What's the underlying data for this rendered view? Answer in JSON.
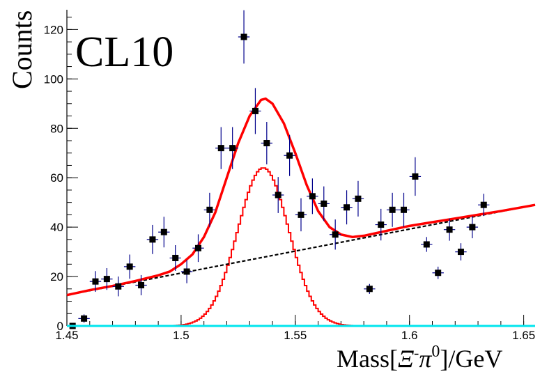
{
  "chart_data": {
    "type": "scatter",
    "title": "CL10",
    "xlabel": "Mass[Ξ-π0]/GeV",
    "xlabel_parts": {
      "prefix": "Mass[",
      "xi": "Ξ",
      "minus": "-",
      "pi": "π",
      "zero": "0",
      "suffix": "]/GeV"
    },
    "ylabel": "Counts",
    "xlim": [
      1.45,
      1.655
    ],
    "ylim": [
      0,
      128
    ],
    "x_ticks": [
      {
        "value": 1.45,
        "label": "1.45"
      },
      {
        "value": 1.5,
        "label": "1.5"
      },
      {
        "value": 1.55,
        "label": "1.55"
      },
      {
        "value": 1.6,
        "label": "1.6"
      },
      {
        "value": 1.65,
        "label": "1.65"
      }
    ],
    "y_ticks": [
      {
        "value": 0,
        "label": "0"
      },
      {
        "value": 20,
        "label": "20"
      },
      {
        "value": 40,
        "label": "40"
      },
      {
        "value": 60,
        "label": "60"
      },
      {
        "value": 80,
        "label": "80"
      },
      {
        "value": 100,
        "label": "100"
      },
      {
        "value": 120,
        "label": "120"
      }
    ],
    "x_minor_step": 0.01,
    "y_minor_step": 5,
    "bin_halfwidth": 0.0025,
    "data_points": [
      {
        "x": 1.4525,
        "y": 0,
        "err": 1
      },
      {
        "x": 1.4575,
        "y": 3,
        "err": 1.7
      },
      {
        "x": 1.4625,
        "y": 18,
        "err": 4.2
      },
      {
        "x": 1.4675,
        "y": 19,
        "err": 4.4
      },
      {
        "x": 1.4725,
        "y": 16,
        "err": 4
      },
      {
        "x": 1.4775,
        "y": 24,
        "err": 4.9
      },
      {
        "x": 1.4825,
        "y": 16.5,
        "err": 4.1
      },
      {
        "x": 1.4875,
        "y": 35,
        "err": 5.9
      },
      {
        "x": 1.4925,
        "y": 38,
        "err": 6.2
      },
      {
        "x": 1.4975,
        "y": 27.5,
        "err": 5.2
      },
      {
        "x": 1.5025,
        "y": 22,
        "err": 4.7
      },
      {
        "x": 1.5075,
        "y": 31.5,
        "err": 5.6
      },
      {
        "x": 1.5125,
        "y": 47,
        "err": 6.9
      },
      {
        "x": 1.5175,
        "y": 72,
        "err": 8.5
      },
      {
        "x": 1.5225,
        "y": 72,
        "err": 8.5
      },
      {
        "x": 1.5275,
        "y": 117,
        "err": 10.8
      },
      {
        "x": 1.5325,
        "y": 87,
        "err": 9.3
      },
      {
        "x": 1.5375,
        "y": 74,
        "err": 8.6
      },
      {
        "x": 1.5425,
        "y": 53,
        "err": 7.3
      },
      {
        "x": 1.5475,
        "y": 69,
        "err": 8.3
      },
      {
        "x": 1.5525,
        "y": 45,
        "err": 6.7
      },
      {
        "x": 1.5575,
        "y": 52.5,
        "err": 7.2
      },
      {
        "x": 1.5625,
        "y": 49.5,
        "err": 7
      },
      {
        "x": 1.5675,
        "y": 37,
        "err": 6.1
      },
      {
        "x": 1.5725,
        "y": 48,
        "err": 6.9
      },
      {
        "x": 1.5775,
        "y": 51.5,
        "err": 7.2
      },
      {
        "x": 1.5825,
        "y": 15,
        "err": 2
      },
      {
        "x": 1.5875,
        "y": 41,
        "err": 6.4
      },
      {
        "x": 1.5925,
        "y": 47,
        "err": 6.9
      },
      {
        "x": 1.5975,
        "y": 47,
        "err": 6.9
      },
      {
        "x": 1.6025,
        "y": 60.5,
        "err": 7.8
      },
      {
        "x": 1.6075,
        "y": 33,
        "err": 3
      },
      {
        "x": 1.6125,
        "y": 21.5,
        "err": 2.5
      },
      {
        "x": 1.6175,
        "y": 39,
        "err": 4.5
      },
      {
        "x": 1.6225,
        "y": 30,
        "err": 3.5
      },
      {
        "x": 1.6275,
        "y": 40,
        "err": 4.5
      },
      {
        "x": 1.6325,
        "y": 49,
        "err": 4.5
      }
    ],
    "fit_total": {
      "name": "",
      "color": "#ff0000",
      "points": [
        [
          1.45,
          12.5
        ],
        [
          1.46,
          14.5
        ],
        [
          1.47,
          16.2
        ],
        [
          1.48,
          18.2
        ],
        [
          1.49,
          20.5
        ],
        [
          1.495,
          22
        ],
        [
          1.5,
          25
        ],
        [
          1.505,
          29
        ],
        [
          1.51,
          36
        ],
        [
          1.515,
          46
        ],
        [
          1.52,
          60
        ],
        [
          1.525,
          74
        ],
        [
          1.53,
          85
        ],
        [
          1.535,
          91.5
        ],
        [
          1.537,
          92
        ],
        [
          1.54,
          90
        ],
        [
          1.545,
          82
        ],
        [
          1.55,
          70
        ],
        [
          1.555,
          57
        ],
        [
          1.56,
          46.5
        ],
        [
          1.565,
          40
        ],
        [
          1.57,
          37
        ],
        [
          1.575,
          36
        ],
        [
          1.58,
          36.5
        ],
        [
          1.585,
          37.5
        ],
        [
          1.59,
          38.5
        ],
        [
          1.6,
          40.5
        ],
        [
          1.61,
          42
        ],
        [
          1.62,
          43.5
        ],
        [
          1.63,
          45
        ],
        [
          1.64,
          46.5
        ],
        [
          1.655,
          49
        ]
      ]
    },
    "background": {
      "name": "",
      "color": "#000000",
      "points": [
        [
          1.45,
          12.5
        ],
        [
          1.655,
          49
        ]
      ]
    },
    "signal": {
      "name": "",
      "color": "#ff0000",
      "mean": 1.536,
      "sigma": 0.0112,
      "amplitude": 64,
      "bin_width": 0.001,
      "x_range": [
        1.49,
        1.585
      ]
    },
    "baseline_color": "#00e5ee",
    "marker_color": "#000000",
    "errorbar_color": "#00008b"
  }
}
